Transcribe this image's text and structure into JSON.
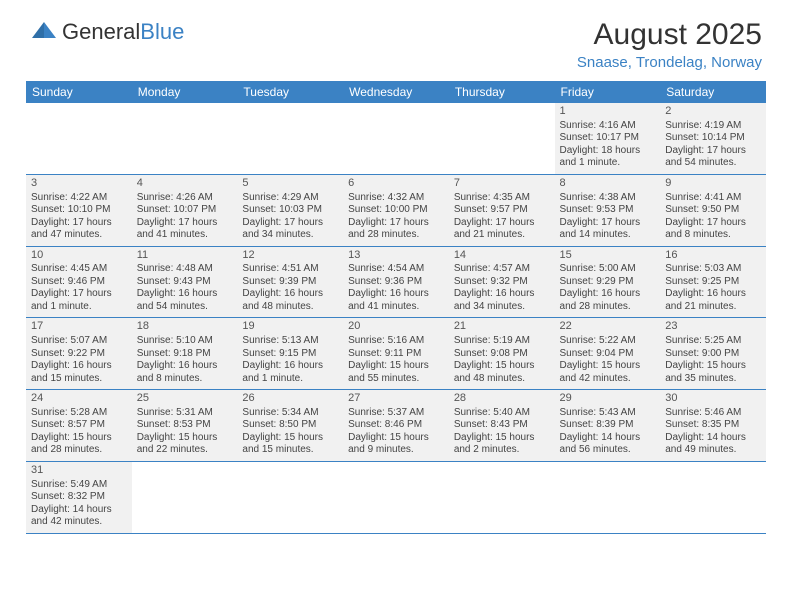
{
  "logo": {
    "text1": "General",
    "text2": "Blue"
  },
  "title": "August 2025",
  "subtitle": "Snaase, Trondelag, Norway",
  "days": [
    "Sunday",
    "Monday",
    "Tuesday",
    "Wednesday",
    "Thursday",
    "Friday",
    "Saturday"
  ],
  "colors": {
    "brand": "#3b82c4",
    "header_bg": "#3b82c4",
    "cell_bg": "#f1f1f1",
    "page_bg": "#ffffff"
  },
  "weeks": [
    [
      null,
      null,
      null,
      null,
      null,
      {
        "n": "1",
        "sr": "Sunrise: 4:16 AM",
        "ss": "Sunset: 10:17 PM",
        "dl": "Daylight: 18 hours and 1 minute."
      },
      {
        "n": "2",
        "sr": "Sunrise: 4:19 AM",
        "ss": "Sunset: 10:14 PM",
        "dl": "Daylight: 17 hours and 54 minutes."
      }
    ],
    [
      {
        "n": "3",
        "sr": "Sunrise: 4:22 AM",
        "ss": "Sunset: 10:10 PM",
        "dl": "Daylight: 17 hours and 47 minutes."
      },
      {
        "n": "4",
        "sr": "Sunrise: 4:26 AM",
        "ss": "Sunset: 10:07 PM",
        "dl": "Daylight: 17 hours and 41 minutes."
      },
      {
        "n": "5",
        "sr": "Sunrise: 4:29 AM",
        "ss": "Sunset: 10:03 PM",
        "dl": "Daylight: 17 hours and 34 minutes."
      },
      {
        "n": "6",
        "sr": "Sunrise: 4:32 AM",
        "ss": "Sunset: 10:00 PM",
        "dl": "Daylight: 17 hours and 28 minutes."
      },
      {
        "n": "7",
        "sr": "Sunrise: 4:35 AM",
        "ss": "Sunset: 9:57 PM",
        "dl": "Daylight: 17 hours and 21 minutes."
      },
      {
        "n": "8",
        "sr": "Sunrise: 4:38 AM",
        "ss": "Sunset: 9:53 PM",
        "dl": "Daylight: 17 hours and 14 minutes."
      },
      {
        "n": "9",
        "sr": "Sunrise: 4:41 AM",
        "ss": "Sunset: 9:50 PM",
        "dl": "Daylight: 17 hours and 8 minutes."
      }
    ],
    [
      {
        "n": "10",
        "sr": "Sunrise: 4:45 AM",
        "ss": "Sunset: 9:46 PM",
        "dl": "Daylight: 17 hours and 1 minute."
      },
      {
        "n": "11",
        "sr": "Sunrise: 4:48 AM",
        "ss": "Sunset: 9:43 PM",
        "dl": "Daylight: 16 hours and 54 minutes."
      },
      {
        "n": "12",
        "sr": "Sunrise: 4:51 AM",
        "ss": "Sunset: 9:39 PM",
        "dl": "Daylight: 16 hours and 48 minutes."
      },
      {
        "n": "13",
        "sr": "Sunrise: 4:54 AM",
        "ss": "Sunset: 9:36 PM",
        "dl": "Daylight: 16 hours and 41 minutes."
      },
      {
        "n": "14",
        "sr": "Sunrise: 4:57 AM",
        "ss": "Sunset: 9:32 PM",
        "dl": "Daylight: 16 hours and 34 minutes."
      },
      {
        "n": "15",
        "sr": "Sunrise: 5:00 AM",
        "ss": "Sunset: 9:29 PM",
        "dl": "Daylight: 16 hours and 28 minutes."
      },
      {
        "n": "16",
        "sr": "Sunrise: 5:03 AM",
        "ss": "Sunset: 9:25 PM",
        "dl": "Daylight: 16 hours and 21 minutes."
      }
    ],
    [
      {
        "n": "17",
        "sr": "Sunrise: 5:07 AM",
        "ss": "Sunset: 9:22 PM",
        "dl": "Daylight: 16 hours and 15 minutes."
      },
      {
        "n": "18",
        "sr": "Sunrise: 5:10 AM",
        "ss": "Sunset: 9:18 PM",
        "dl": "Daylight: 16 hours and 8 minutes."
      },
      {
        "n": "19",
        "sr": "Sunrise: 5:13 AM",
        "ss": "Sunset: 9:15 PM",
        "dl": "Daylight: 16 hours and 1 minute."
      },
      {
        "n": "20",
        "sr": "Sunrise: 5:16 AM",
        "ss": "Sunset: 9:11 PM",
        "dl": "Daylight: 15 hours and 55 minutes."
      },
      {
        "n": "21",
        "sr": "Sunrise: 5:19 AM",
        "ss": "Sunset: 9:08 PM",
        "dl": "Daylight: 15 hours and 48 minutes."
      },
      {
        "n": "22",
        "sr": "Sunrise: 5:22 AM",
        "ss": "Sunset: 9:04 PM",
        "dl": "Daylight: 15 hours and 42 minutes."
      },
      {
        "n": "23",
        "sr": "Sunrise: 5:25 AM",
        "ss": "Sunset: 9:00 PM",
        "dl": "Daylight: 15 hours and 35 minutes."
      }
    ],
    [
      {
        "n": "24",
        "sr": "Sunrise: 5:28 AM",
        "ss": "Sunset: 8:57 PM",
        "dl": "Daylight: 15 hours and 28 minutes."
      },
      {
        "n": "25",
        "sr": "Sunrise: 5:31 AM",
        "ss": "Sunset: 8:53 PM",
        "dl": "Daylight: 15 hours and 22 minutes."
      },
      {
        "n": "26",
        "sr": "Sunrise: 5:34 AM",
        "ss": "Sunset: 8:50 PM",
        "dl": "Daylight: 15 hours and 15 minutes."
      },
      {
        "n": "27",
        "sr": "Sunrise: 5:37 AM",
        "ss": "Sunset: 8:46 PM",
        "dl": "Daylight: 15 hours and 9 minutes."
      },
      {
        "n": "28",
        "sr": "Sunrise: 5:40 AM",
        "ss": "Sunset: 8:43 PM",
        "dl": "Daylight: 15 hours and 2 minutes."
      },
      {
        "n": "29",
        "sr": "Sunrise: 5:43 AM",
        "ss": "Sunset: 8:39 PM",
        "dl": "Daylight: 14 hours and 56 minutes."
      },
      {
        "n": "30",
        "sr": "Sunrise: 5:46 AM",
        "ss": "Sunset: 8:35 PM",
        "dl": "Daylight: 14 hours and 49 minutes."
      }
    ],
    [
      {
        "n": "31",
        "sr": "Sunrise: 5:49 AM",
        "ss": "Sunset: 8:32 PM",
        "dl": "Daylight: 14 hours and 42 minutes."
      },
      null,
      null,
      null,
      null,
      null,
      null
    ]
  ]
}
